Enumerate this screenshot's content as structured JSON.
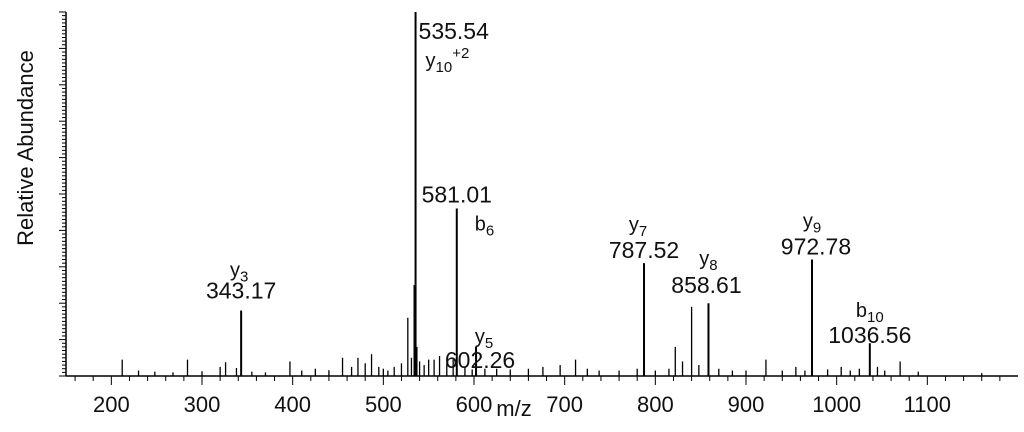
{
  "chart_data": {
    "type": "bar",
    "title": "",
    "xlabel": "m/z",
    "ylabel": "Relative Abundance",
    "xlim": [
      150,
      1200
    ],
    "ylim": [
      0,
      100
    ],
    "grid": false,
    "x_ticks": [
      {
        "value": 200,
        "label": "200"
      },
      {
        "value": 300,
        "label": "300"
      },
      {
        "value": 400,
        "label": "400"
      },
      {
        "value": 500,
        "label": "500"
      },
      {
        "value": 600,
        "label": "600"
      },
      {
        "value": 700,
        "label": "700"
      },
      {
        "value": 800,
        "label": "800"
      },
      {
        "value": 900,
        "label": "900"
      },
      {
        "value": 1000,
        "label": "1000"
      },
      {
        "value": 1100,
        "label": "1100"
      }
    ],
    "annotated_peaks": [
      {
        "mz": 343.17,
        "intensity": 18,
        "mz_label": "343.17",
        "ion": "y",
        "sub": "3",
        "sup": ""
      },
      {
        "mz": 535.54,
        "intensity": 100,
        "mz_label": "535.54",
        "ion": "y",
        "sub": "10",
        "sup": "+2"
      },
      {
        "mz": 581.01,
        "intensity": 46,
        "mz_label": "581.01",
        "ion": "b",
        "sub": "6",
        "sup": ""
      },
      {
        "mz": 602.26,
        "intensity": 8,
        "mz_label": "602.26",
        "ion": "y",
        "sub": "5",
        "sup": ""
      },
      {
        "mz": 787.52,
        "intensity": 31,
        "mz_label": "787.52",
        "ion": "y",
        "sub": "7",
        "sup": ""
      },
      {
        "mz": 858.61,
        "intensity": 20,
        "mz_label": "858.61",
        "ion": "y",
        "sub": "8",
        "sup": ""
      },
      {
        "mz": 972.78,
        "intensity": 32,
        "mz_label": "972.78",
        "ion": "y",
        "sub": "9",
        "sup": ""
      },
      {
        "mz": 1036.56,
        "intensity": 9,
        "mz_label": "1036.56",
        "ion": "b",
        "sub": "10",
        "sup": ""
      }
    ],
    "other_peaks": [
      {
        "mz": 212,
        "intensity": 4.5
      },
      {
        "mz": 230,
        "intensity": 1.5
      },
      {
        "mz": 248,
        "intensity": 1.2
      },
      {
        "mz": 268,
        "intensity": 1.0
      },
      {
        "mz": 284,
        "intensity": 4.5
      },
      {
        "mz": 300,
        "intensity": 1.3
      },
      {
        "mz": 320,
        "intensity": 2.5
      },
      {
        "mz": 326,
        "intensity": 3.8
      },
      {
        "mz": 338,
        "intensity": 2.2
      },
      {
        "mz": 355,
        "intensity": 1.2
      },
      {
        "mz": 370,
        "intensity": 1.0
      },
      {
        "mz": 397,
        "intensity": 4.0
      },
      {
        "mz": 410,
        "intensity": 1.5
      },
      {
        "mz": 425,
        "intensity": 2.0
      },
      {
        "mz": 440,
        "intensity": 1.6
      },
      {
        "mz": 455,
        "intensity": 5.0
      },
      {
        "mz": 465,
        "intensity": 2.5
      },
      {
        "mz": 472,
        "intensity": 5.0
      },
      {
        "mz": 480,
        "intensity": 3.5
      },
      {
        "mz": 487,
        "intensity": 6.0
      },
      {
        "mz": 495,
        "intensity": 2.5
      },
      {
        "mz": 500,
        "intensity": 2.0
      },
      {
        "mz": 505,
        "intensity": 1.5
      },
      {
        "mz": 512,
        "intensity": 2.5
      },
      {
        "mz": 520,
        "intensity": 3.5
      },
      {
        "mz": 527,
        "intensity": 16.0
      },
      {
        "mz": 531,
        "intensity": 5.0
      },
      {
        "mz": 534,
        "intensity": 25.0
      },
      {
        "mz": 537,
        "intensity": 8.0
      },
      {
        "mz": 540,
        "intensity": 4.0
      },
      {
        "mz": 545,
        "intensity": 3.0
      },
      {
        "mz": 550,
        "intensity": 4.5
      },
      {
        "mz": 556,
        "intensity": 4.5
      },
      {
        "mz": 562,
        "intensity": 5.5
      },
      {
        "mz": 570,
        "intensity": 3.5
      },
      {
        "mz": 577,
        "intensity": 4.5
      },
      {
        "mz": 590,
        "intensity": 2.5
      },
      {
        "mz": 598,
        "intensity": 1.8
      },
      {
        "mz": 612,
        "intensity": 2.0
      },
      {
        "mz": 625,
        "intensity": 2.0
      },
      {
        "mz": 640,
        "intensity": 1.8
      },
      {
        "mz": 660,
        "intensity": 2.0
      },
      {
        "mz": 676,
        "intensity": 2.5
      },
      {
        "mz": 695,
        "intensity": 3.0
      },
      {
        "mz": 712,
        "intensity": 4.5
      },
      {
        "mz": 725,
        "intensity": 2.0
      },
      {
        "mz": 738,
        "intensity": 1.5
      },
      {
        "mz": 760,
        "intensity": 1.5
      },
      {
        "mz": 780,
        "intensity": 2.0
      },
      {
        "mz": 800,
        "intensity": 1.5
      },
      {
        "mz": 815,
        "intensity": 2.0
      },
      {
        "mz": 822,
        "intensity": 8.0
      },
      {
        "mz": 830,
        "intensity": 4.0
      },
      {
        "mz": 840,
        "intensity": 19.0
      },
      {
        "mz": 848,
        "intensity": 3.0
      },
      {
        "mz": 870,
        "intensity": 2.0
      },
      {
        "mz": 885,
        "intensity": 1.5
      },
      {
        "mz": 900,
        "intensity": 1.5
      },
      {
        "mz": 922,
        "intensity": 4.5
      },
      {
        "mz": 940,
        "intensity": 1.5
      },
      {
        "mz": 955,
        "intensity": 2.5
      },
      {
        "mz": 965,
        "intensity": 1.5
      },
      {
        "mz": 990,
        "intensity": 1.8
      },
      {
        "mz": 1005,
        "intensity": 2.5
      },
      {
        "mz": 1015,
        "intensity": 1.5
      },
      {
        "mz": 1025,
        "intensity": 2.0
      },
      {
        "mz": 1045,
        "intensity": 2.5
      },
      {
        "mz": 1053,
        "intensity": 1.5
      },
      {
        "mz": 1070,
        "intensity": 4.0
      },
      {
        "mz": 1090,
        "intensity": 1.2
      },
      {
        "mz": 1160,
        "intensity": 0.8
      }
    ]
  }
}
